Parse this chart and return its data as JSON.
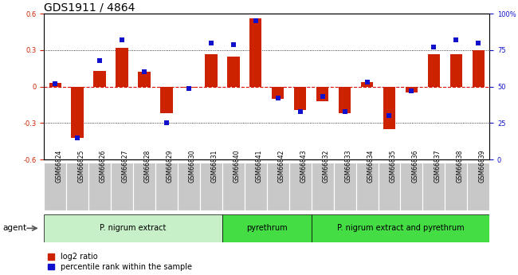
{
  "title": "GDS1911 / 4864",
  "samples": [
    "GSM66824",
    "GSM66825",
    "GSM66826",
    "GSM66827",
    "GSM66828",
    "GSM66829",
    "GSM66830",
    "GSM66831",
    "GSM66840",
    "GSM66841",
    "GSM66842",
    "GSM66843",
    "GSM66832",
    "GSM66833",
    "GSM66834",
    "GSM66835",
    "GSM66836",
    "GSM66837",
    "GSM66838",
    "GSM66839"
  ],
  "log2_ratio": [
    0.03,
    -0.42,
    0.13,
    0.32,
    0.12,
    -0.22,
    -0.01,
    0.27,
    0.25,
    0.56,
    -0.1,
    -0.19,
    -0.12,
    -0.22,
    0.04,
    -0.35,
    -0.05,
    0.27,
    0.27,
    0.3
  ],
  "percentile": [
    52,
    15,
    68,
    82,
    60,
    25,
    49,
    80,
    79,
    95,
    42,
    33,
    43,
    33,
    53,
    30,
    47,
    77,
    82,
    80
  ],
  "groups": [
    {
      "label": "P. nigrum extract",
      "start": 0,
      "end": 8
    },
    {
      "label": "pyrethrum",
      "start": 8,
      "end": 12
    },
    {
      "label": "P. nigrum extract and pyrethrum",
      "start": 12,
      "end": 20
    }
  ],
  "group_colors": [
    "#C8F0C8",
    "#44DD44",
    "#44DD44"
  ],
  "ylim_left": [
    -0.6,
    0.6
  ],
  "ylim_right": [
    0,
    100
  ],
  "bar_color_red": "#CC2200",
  "bar_color_blue": "#1111CC",
  "zero_line_color": "#DD0000",
  "agent_label": "agent",
  "legend_red": "log2 ratio",
  "legend_blue": "percentile rank within the sample",
  "title_fontsize": 10,
  "tick_fontsize": 6,
  "bar_width": 0.55,
  "marker_size": 4
}
